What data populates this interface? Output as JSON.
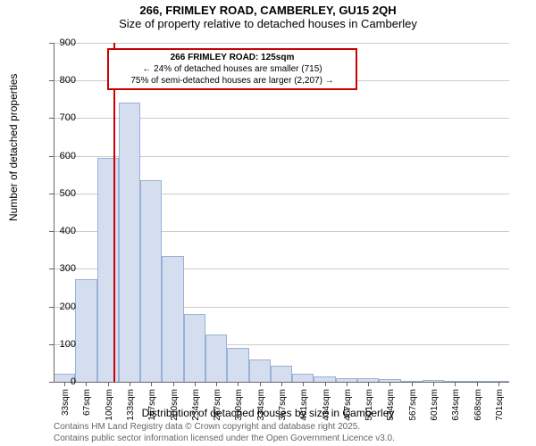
{
  "titles": {
    "line1": "266, FRIMLEY ROAD, CAMBERLEY, GU15 2QH",
    "line2": "Size of property relative to detached houses in Camberley"
  },
  "axes": {
    "ylabel": "Number of detached properties",
    "xlabel": "Distribution of detached houses by size in Camberley"
  },
  "chart": {
    "type": "histogram",
    "ymax": 900,
    "ytick_step": 100,
    "yticks": [
      0,
      100,
      200,
      300,
      400,
      500,
      600,
      700,
      800,
      900
    ],
    "xtick_labels": [
      "33sqm",
      "67sqm",
      "100sqm",
      "133sqm",
      "167sqm",
      "200sqm",
      "234sqm",
      "267sqm",
      "300sqm",
      "334sqm",
      "367sqm",
      "401sqm",
      "434sqm",
      "467sqm",
      "501sqm",
      "534sqm",
      "567sqm",
      "601sqm",
      "634sqm",
      "668sqm",
      "701sqm"
    ],
    "bar_values": [
      22,
      272,
      595,
      742,
      535,
      335,
      180,
      125,
      90,
      60,
      42,
      22,
      15,
      10,
      10,
      8,
      2,
      5,
      2,
      2,
      2
    ],
    "bar_fill": "#d5deef",
    "bar_stroke": "#9ab0d6",
    "grid_color": "#cccccc",
    "axis_color": "#666666",
    "bar_gap_ratio": 0.0
  },
  "marker": {
    "x_category_index": 2.75,
    "line_color": "#cc0000"
  },
  "callout": {
    "line1": "266 FRIMLEY ROAD: 125sqm",
    "line2": "← 24% of detached houses are smaller (715)",
    "line3": "75% of semi-detached houses are larger (2,207) →",
    "border_color": "#cc0000"
  },
  "attribution": {
    "line1": "Contains HM Land Registry data © Crown copyright and database right 2025.",
    "line2": "Contains public sector information licensed under the Open Government Licence v3.0."
  }
}
